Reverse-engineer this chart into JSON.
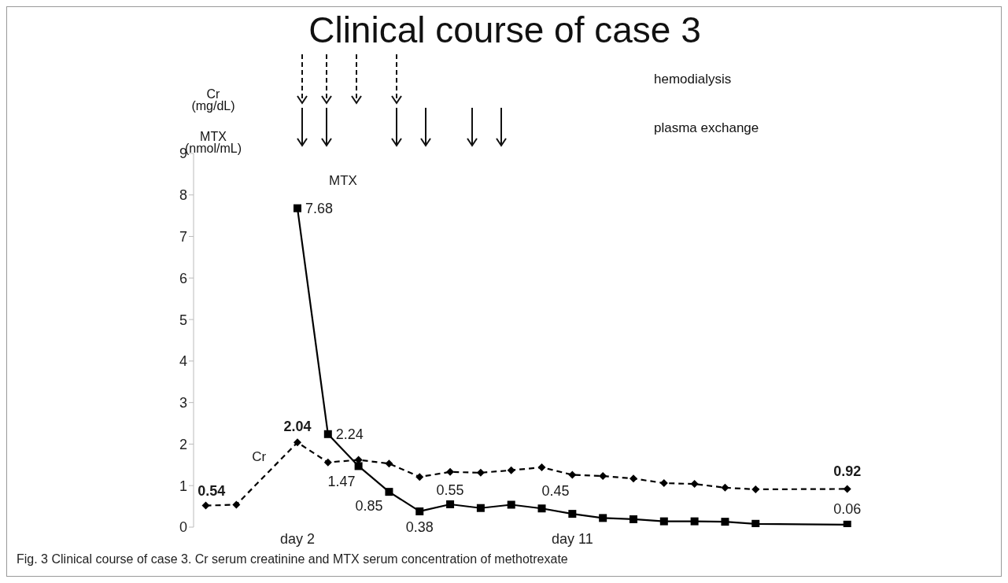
{
  "chart_data": {
    "type": "line",
    "title": "Clinical course of case 3",
    "ylabel": "Cr (mg/dL)",
    "annotations": [
      "MTX (nmol/mL)",
      "hemodialysis",
      "plasma exchange",
      "Fig. 3 Clinical course of case 3. Cr serum creatinine and MTX serum concentration of methotrexate"
    ],
    "categories": [
      null,
      null,
      null,
      "day 2",
      null,
      null,
      null,
      null,
      null,
      null,
      null,
      null,
      "day 11",
      null,
      null,
      null,
      null,
      null,
      null,
      null,
      null,
      null
    ],
    "ylim": [
      0,
      9
    ],
    "yticks": [
      0,
      1,
      2,
      3,
      4,
      5,
      6,
      7,
      8,
      9
    ],
    "grid": false,
    "legend": false,
    "series": [
      {
        "name": "Cr",
        "color": "#000000",
        "marker": "diamond",
        "line_style": "dashed",
        "values": [
          0.52,
          0.54,
          null,
          2.04,
          1.56,
          1.62,
          1.53,
          1.21,
          1.33,
          1.31,
          1.37,
          1.44,
          1.26,
          1.23,
          1.17,
          1.06,
          1.04,
          0.95,
          0.91,
          null,
          null,
          0.92
        ],
        "value_labels": [
          null,
          "0.54",
          null,
          "2.04",
          null,
          null,
          null,
          null,
          null,
          null,
          null,
          null,
          null,
          null,
          null,
          null,
          null,
          null,
          null,
          null,
          null,
          "0.92"
        ]
      },
      {
        "name": "MTX",
        "color": "#000000",
        "marker": "square",
        "line_style": "solid",
        "values": [
          null,
          null,
          null,
          7.68,
          2.24,
          1.47,
          0.85,
          0.38,
          0.55,
          0.46,
          0.54,
          0.45,
          0.32,
          0.22,
          0.19,
          0.14,
          0.14,
          0.13,
          0.08,
          null,
          null,
          0.06
        ],
        "value_labels": [
          null,
          null,
          null,
          "7.68",
          "2.24",
          "1.47",
          "0.85",
          "0.38",
          "0.55",
          null,
          null,
          "0.45",
          null,
          null,
          null,
          null,
          null,
          null,
          null,
          null,
          null,
          "0.06"
        ]
      }
    ]
  }
}
